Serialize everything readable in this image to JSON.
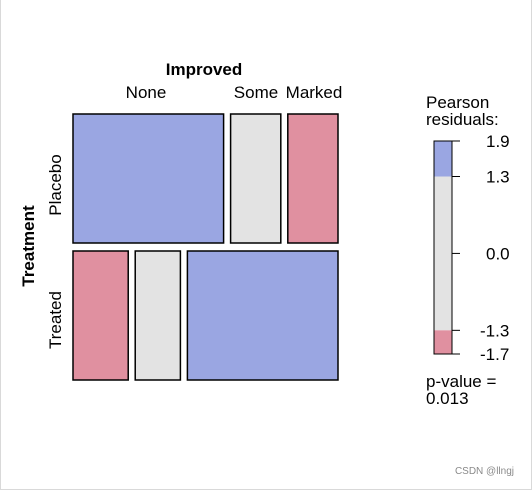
{
  "chart_data": {
    "type": "mosaic",
    "row_variable": "Treatment",
    "column_variable": "Improved",
    "rows": [
      "Placebo",
      "Treated"
    ],
    "columns": [
      "None",
      "Some",
      "Marked"
    ],
    "proportions": {
      "row_share": [
        0.5,
        0.5
      ],
      "column_share_by_row": [
        [
          0.6,
          0.2,
          0.2
        ],
        [
          0.22,
          0.18,
          0.6
        ]
      ]
    },
    "cell_shading": [
      [
        "positive",
        "neutral",
        "negative"
      ],
      [
        "negative",
        "neutral",
        "positive"
      ]
    ],
    "legend": {
      "title": [
        "Pearson",
        "residuals:"
      ],
      "ticks": [
        "1.9",
        "1.3",
        "0.0",
        "-1.3",
        "-1.7"
      ],
      "tick_values": [
        1.9,
        1.3,
        0.0,
        -1.3,
        -1.7
      ],
      "range": [
        -1.7,
        1.9
      ],
      "thresholds": [
        -1.3,
        1.3
      ],
      "footer": [
        "p-value =",
        "0.013"
      ]
    },
    "colors": {
      "positive": "#9aa6e2",
      "neutral": "#e3e3e3",
      "negative": "#e090a0",
      "border": "#000000"
    }
  },
  "watermark": "CSDN @llngj"
}
